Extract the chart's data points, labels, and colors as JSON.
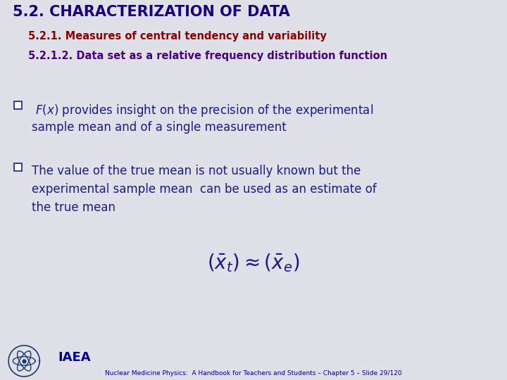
{
  "title": "5.2. CHARACTERIZATION OF DATA",
  "subtitle1": "5.2.1. Measures of central tendency and variability",
  "subtitle2": "5.2.1.2. Data set as a relative frequency distribution function",
  "title_color": "#1a0080",
  "subtitle1_color": "#8b0000",
  "subtitle2_color": "#4b0082",
  "bg_color": "#d4d4de",
  "header_bg": "#c2c2d0",
  "body_bg": "#e0e0e8",
  "bullet1_line1": " $F(x)$ provides insight on the precision of the experimental",
  "bullet1_line2": "sample mean and of a single measurement",
  "bullet2_line1": "The value of the true mean is not usually known but the",
  "bullet2_line2": "experimental sample mean  can be used as an estimate of",
  "bullet2_line3": "the true mean",
  "formula": "$\\left(\\bar{x}_t\\right)\\approx\\left(\\bar{x}_e\\right)$",
  "footer_text": "Nuclear Medicine Physics:  A Handbook for Teachers and Students – Chapter 5 – Slide 29/120",
  "bullet_color": "#1a1a8c",
  "footer_color": "#00008b",
  "title_fontsize": 15,
  "subtitle_fontsize": 10.5,
  "body_fontsize": 12,
  "formula_fontsize": 20
}
